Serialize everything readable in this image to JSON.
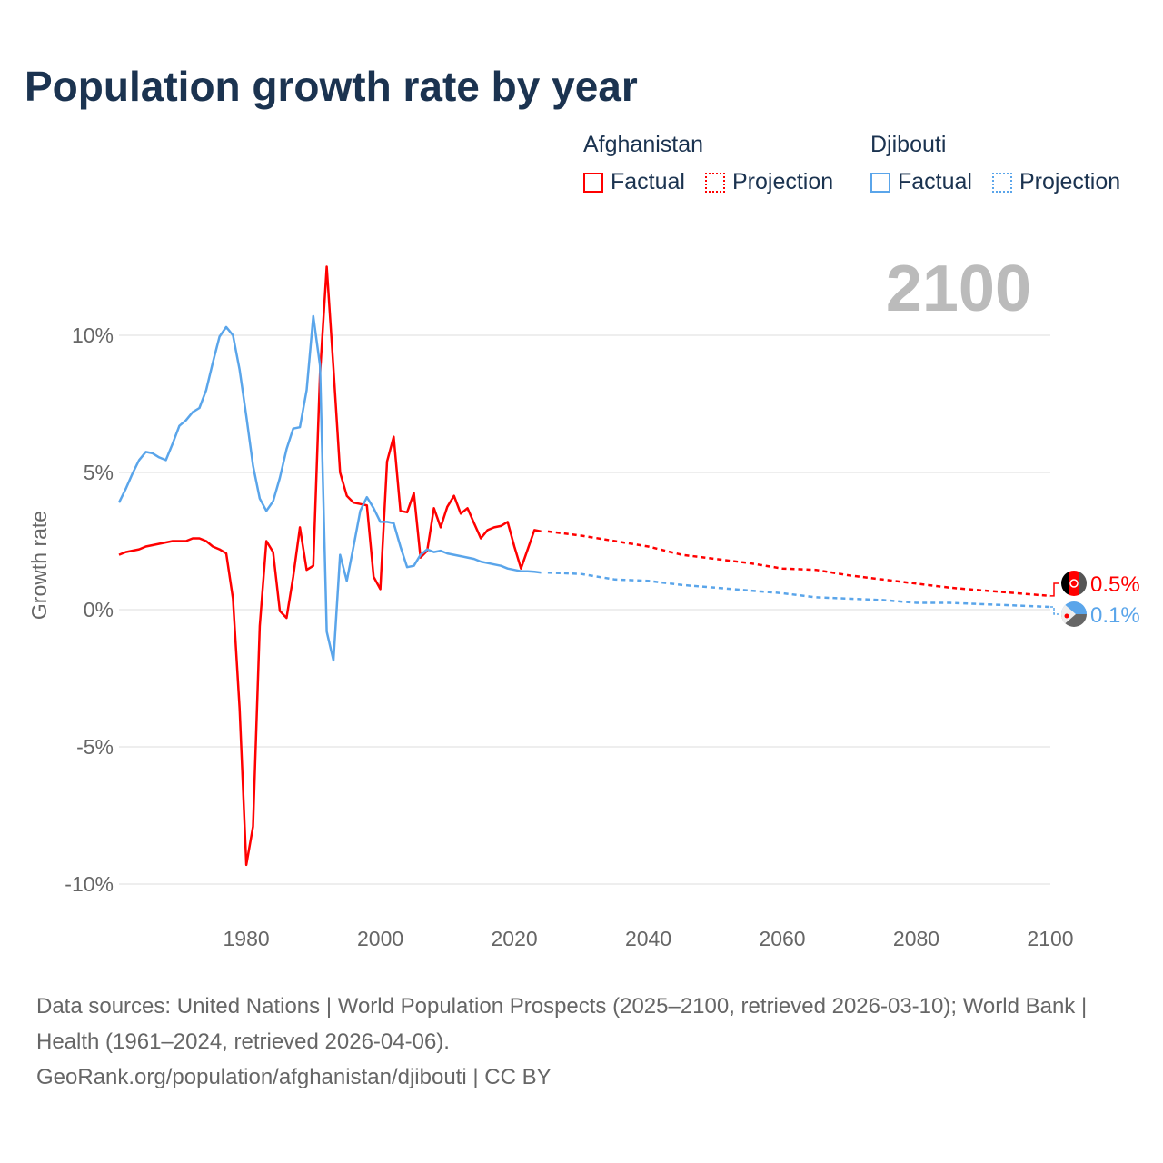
{
  "title": "Population growth rate by year",
  "legend": {
    "groups": [
      {
        "name": "Afghanistan",
        "factual": "Factual",
        "projection": "Projection",
        "color": "#ff0000"
      },
      {
        "name": "Djibouti",
        "factual": "Factual",
        "projection": "Projection",
        "color": "#5aa5ea"
      }
    ]
  },
  "year_label": "2100",
  "footer": {
    "line1": "Data sources: United Nations | World Population Prospects (2025–2100, retrieved 2026-03-10); World Bank | Health (1961–2024, retrieved 2026-04-06).",
    "line2": "GeoRank.org/population/afghanistan/djibouti | CC BY"
  },
  "chart_data": {
    "type": "line",
    "title": "Population growth rate by year",
    "xlabel": "",
    "ylabel": "Growth rate",
    "xlim": [
      1961,
      2100
    ],
    "ylim": [
      -10,
      12.5
    ],
    "xticks": [
      1980,
      2000,
      2020,
      2040,
      2060,
      2080,
      2100
    ],
    "xtick_labels": [
      "1980",
      "2000",
      "2020",
      "2040",
      "2060",
      "2080",
      "2100"
    ],
    "yticks": [
      10,
      5,
      0,
      -5,
      -10
    ],
    "ytick_labels": [
      "10%",
      "5%",
      "0%",
      "-5%",
      "-10%"
    ],
    "grid": true,
    "series": [
      {
        "name": "Afghanistan Factual",
        "color": "#ff0000",
        "dash": false,
        "x_start": 1961,
        "values": [
          2.0,
          2.1,
          2.15,
          2.2,
          2.3,
          2.35,
          2.4,
          2.45,
          2.5,
          2.5,
          2.5,
          2.6,
          2.6,
          2.5,
          2.3,
          2.2,
          2.05,
          0.4,
          -3.6,
          -9.3,
          -7.9,
          -0.6,
          2.5,
          2.1,
          -0.05,
          -0.3,
          1.2,
          3.0,
          1.45,
          1.6,
          8.6,
          12.5,
          8.8,
          5.0,
          4.15,
          3.9,
          3.85,
          3.8,
          1.2,
          0.75,
          5.4,
          6.3,
          3.6,
          3.55,
          4.25,
          1.9,
          2.15,
          3.7,
          3.0,
          3.75,
          4.15,
          3.5,
          3.7,
          3.15,
          2.6,
          2.9,
          3.0,
          3.05,
          3.2,
          2.3,
          1.5,
          2.2,
          2.9,
          2.85
        ]
      },
      {
        "name": "Afghanistan Projection",
        "color": "#ff0000",
        "dash": true,
        "x_start": 2025,
        "x_step": 5,
        "values": [
          2.85,
          2.7,
          2.5,
          2.3,
          2.0,
          1.85,
          1.7,
          1.5,
          1.45,
          1.25,
          1.1,
          0.95,
          0.8,
          0.7,
          0.6,
          0.5
        ]
      },
      {
        "name": "Djibouti Factual",
        "color": "#5aa5ea",
        "dash": false,
        "x_start": 1961,
        "values": [
          3.9,
          4.4,
          4.95,
          5.45,
          5.75,
          5.7,
          5.55,
          5.45,
          6.05,
          6.7,
          6.9,
          7.2,
          7.35,
          8.0,
          9.0,
          9.95,
          10.3,
          10.0,
          8.75,
          7.05,
          5.25,
          4.05,
          3.6,
          3.95,
          4.8,
          5.85,
          6.6,
          6.65,
          8.0,
          10.7,
          8.9,
          -0.8,
          -1.85,
          2.0,
          1.05,
          2.3,
          3.6,
          4.1,
          3.7,
          3.2,
          3.2,
          3.15,
          2.3,
          1.55,
          1.6,
          2.0,
          2.2,
          2.1,
          2.15,
          2.05,
          2.0,
          1.95,
          1.9,
          1.85,
          1.75,
          1.7,
          1.65,
          1.6,
          1.5,
          1.45,
          1.4,
          1.4,
          1.38,
          1.35
        ]
      },
      {
        "name": "Djibouti Projection",
        "color": "#5aa5ea",
        "dash": true,
        "x_start": 2025,
        "x_step": 5,
        "values": [
          1.35,
          1.3,
          1.1,
          1.05,
          0.9,
          0.8,
          0.7,
          0.6,
          0.45,
          0.4,
          0.35,
          0.25,
          0.25,
          0.2,
          0.15,
          0.1
        ]
      }
    ],
    "end_labels": [
      {
        "country": "Afghanistan",
        "text": "0.5%",
        "color": "#ff0000"
      },
      {
        "country": "Djibouti",
        "text": "0.1%",
        "color": "#5aa5ea"
      }
    ]
  }
}
